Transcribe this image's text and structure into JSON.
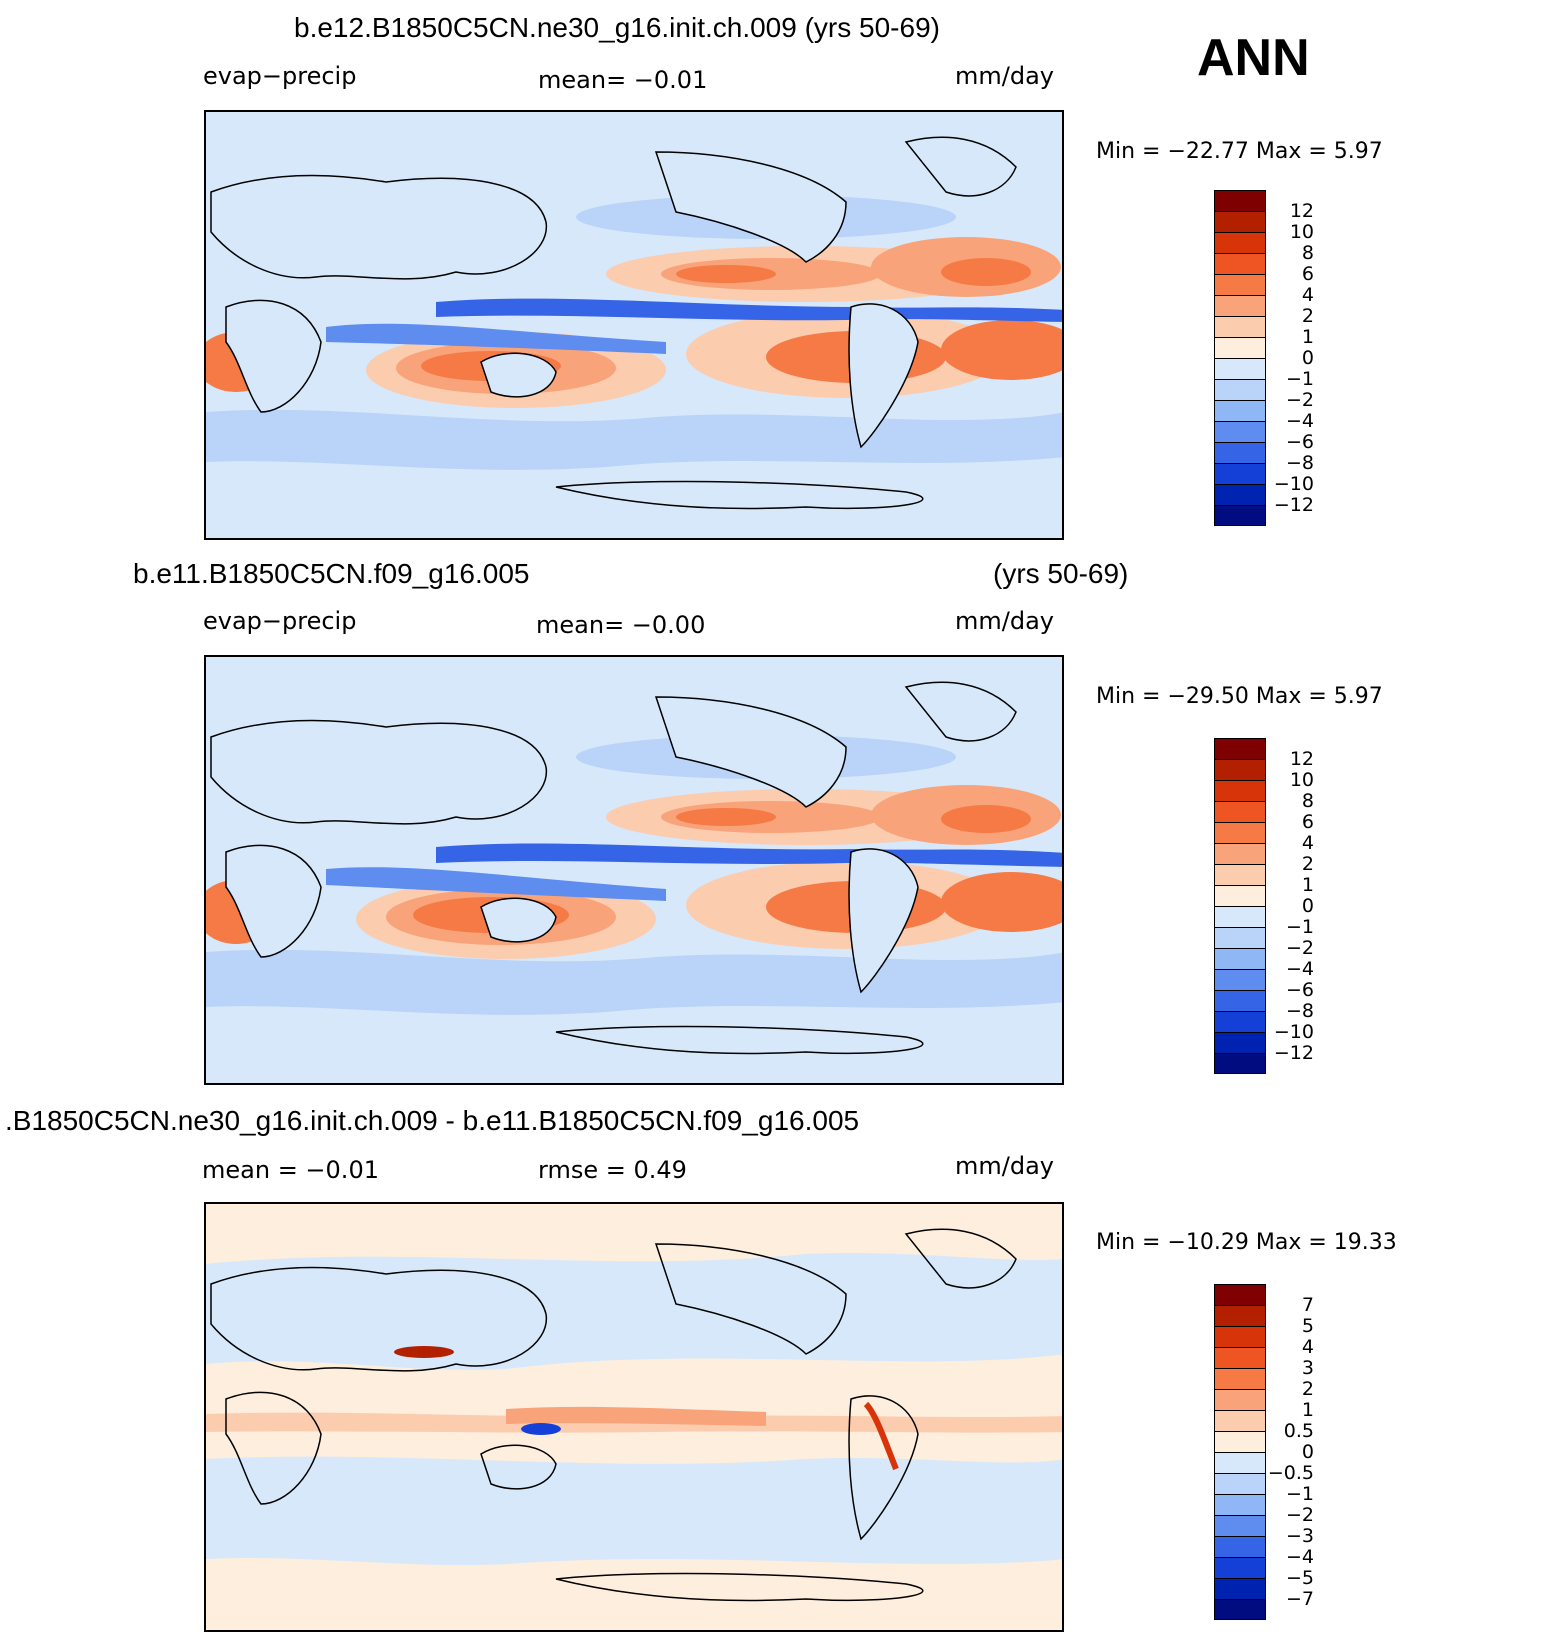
{
  "season": "ANN",
  "panels": [
    {
      "title": "b.e12.B1850C5CN.ne30_g16.init.ch.009 (yrs 50-69)",
      "left_label": "evap−precip",
      "center_label": "mean=    −0.01",
      "units": "mm/day",
      "minmax": "Min  =  −22.77  Max  =      5.97",
      "colorbar": {
        "levels": [
          "12",
          "10",
          "8",
          "6",
          "4",
          "2",
          "1",
          "0",
          "−1",
          "−2",
          "−4",
          "−6",
          "−8",
          "−10",
          "−12"
        ],
        "colors": [
          "#7f0000",
          "#b22000",
          "#d8340a",
          "#ee5522",
          "#f57a45",
          "#f9a37a",
          "#fcccaf",
          "#fdeedd",
          "#d6e8fa",
          "#b9d4f8",
          "#8fb7f5",
          "#5e8cef",
          "#3564e6",
          "#1440d8",
          "#0022b0",
          "#000c80"
        ]
      }
    },
    {
      "title_left": "b.e11.B1850C5CN.f09_g16.005",
      "title_right": "(yrs 50-69)",
      "left_label": "evap−precip",
      "center_label": "mean=    −0.00",
      "units": "mm/day",
      "minmax": "Min  =  −29.50  Max  =      5.97",
      "colorbar": {
        "levels": [
          "12",
          "10",
          "8",
          "6",
          "4",
          "2",
          "1",
          "0",
          "−1",
          "−2",
          "−4",
          "−6",
          "−8",
          "−10",
          "−12"
        ],
        "colors": [
          "#7f0000",
          "#b22000",
          "#d8340a",
          "#ee5522",
          "#f57a45",
          "#f9a37a",
          "#fcccaf",
          "#fdeedd",
          "#d6e8fa",
          "#b9d4f8",
          "#8fb7f5",
          "#5e8cef",
          "#3564e6",
          "#1440d8",
          "#0022b0",
          "#000c80"
        ]
      }
    },
    {
      "title": ".B1850C5CN.ne30_g16.init.ch.009 - b.e11.B1850C5CN.f09_g16.005",
      "left_label": "mean  =     −0.01",
      "center_label": "rmse  =      0.49",
      "units": "mm/day",
      "minmax": "Min  =  −10.29  Max  =    19.33",
      "colorbar": {
        "levels": [
          "7",
          "5",
          "4",
          "3",
          "2",
          "1",
          "0.5",
          "0",
          "−0.5",
          "−1",
          "−2",
          "−3",
          "−4",
          "−5",
          "−7"
        ],
        "colors": [
          "#7f0000",
          "#b22000",
          "#d8340a",
          "#ee5522",
          "#f57a45",
          "#f9a37a",
          "#fcccaf",
          "#fdeedd",
          "#d6e8fa",
          "#b9d4f8",
          "#8fb7f5",
          "#5e8cef",
          "#3564e6",
          "#1440d8",
          "#0022b0",
          "#000c80"
        ]
      }
    }
  ]
}
